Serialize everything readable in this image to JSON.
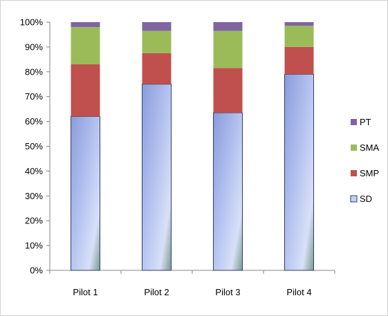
{
  "chart_data": {
    "type": "bar",
    "stacked": true,
    "categories": [
      "Pilot 1",
      "Pilot 2",
      "Pilot 3",
      "Pilot 4"
    ],
    "series": [
      {
        "name": "SD",
        "color": "#a9b8ea",
        "values": [
          62,
          75,
          63.5,
          79
        ]
      },
      {
        "name": "SMP",
        "color": "#c0504d",
        "values": [
          21,
          12.5,
          18,
          11
        ]
      },
      {
        "name": "SMA",
        "color": "#9bbb59",
        "values": [
          15,
          9,
          15,
          8.5
        ]
      },
      {
        "name": "PT",
        "color": "#8064a2",
        "values": [
          2,
          3.5,
          3.5,
          1.5
        ]
      }
    ],
    "ylim": [
      0,
      100
    ],
    "y_ticks": [
      "0%",
      "10%",
      "20%",
      "30%",
      "40%",
      "50%",
      "60%",
      "70%",
      "80%",
      "90%",
      "100%"
    ],
    "legend_position": "right",
    "legend_order": [
      "PT",
      "SMA",
      "SMP",
      "SD"
    ],
    "grid": false,
    "title": "",
    "xlabel": "",
    "ylabel": ""
  }
}
